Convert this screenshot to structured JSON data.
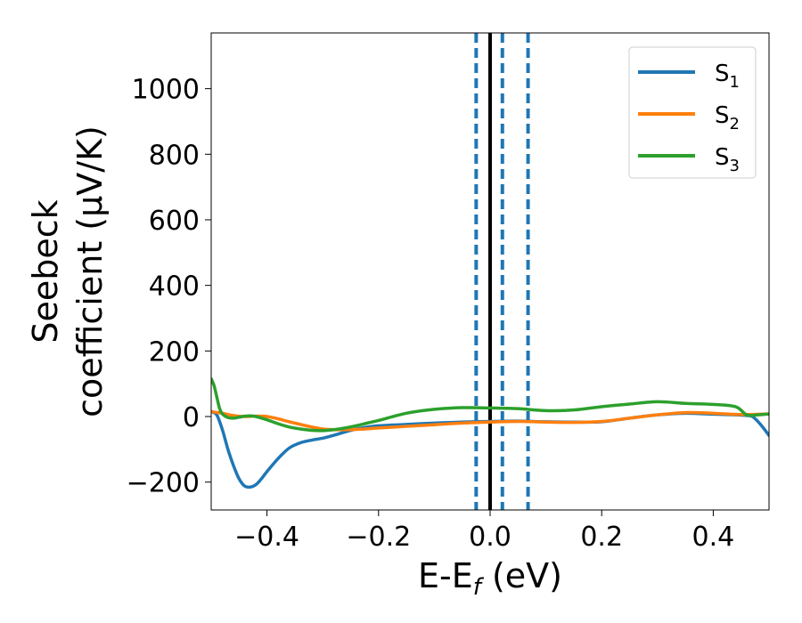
{
  "chart_data": {
    "type": "line",
    "xlabel": "E-E_f (eV)",
    "xlabel_parts": {
      "main": "E-E",
      "sub": "f",
      "tail": " (eV)"
    },
    "ylabel_lines": [
      "Seebeck",
      "coefficient  (μV/K)"
    ],
    "xlim": [
      -0.5,
      0.5
    ],
    "ylim": [
      -285,
      1170
    ],
    "xticks": [
      -0.4,
      -0.2,
      0.0,
      0.2,
      0.4
    ],
    "xtick_labels": [
      "−0.4",
      "−0.2",
      "0.0",
      "0.2",
      "0.4"
    ],
    "yticks": [
      -200,
      0,
      200,
      400,
      600,
      800,
      1000
    ],
    "ytick_labels": [
      "−200",
      "0",
      "200",
      "400",
      "600",
      "800",
      "1000"
    ],
    "legend_position": "top-right",
    "vlines": [
      {
        "x": -0.025,
        "style": "dashed",
        "color": "#1f77b4"
      },
      {
        "x": 0.0,
        "style": "solid",
        "color": "#000000"
      },
      {
        "x": 0.022,
        "style": "dashed",
        "color": "#1f77b4"
      },
      {
        "x": 0.068,
        "style": "dashed",
        "color": "#1f77b4"
      }
    ],
    "series": [
      {
        "name": "S1",
        "label_main": "S",
        "label_sub": "1",
        "color": "#1f77b4",
        "x": [
          -0.5,
          -0.49,
          -0.48,
          -0.47,
          -0.46,
          -0.45,
          -0.44,
          -0.43,
          -0.42,
          -0.41,
          -0.4,
          -0.38,
          -0.36,
          -0.34,
          -0.32,
          -0.3,
          -0.28,
          -0.26,
          -0.24,
          -0.22,
          -0.2,
          -0.15,
          -0.1,
          -0.05,
          0.0,
          0.05,
          0.1,
          0.15,
          0.2,
          0.25,
          0.3,
          0.35,
          0.4,
          0.44,
          0.46,
          0.47,
          0.48,
          0.49,
          0.5
        ],
        "y": [
          15,
          5,
          -40,
          -100,
          -150,
          -190,
          -212,
          -215,
          -208,
          -190,
          -168,
          -128,
          -96,
          -80,
          -72,
          -66,
          -57,
          -47,
          -38,
          -32,
          -28,
          -24,
          -20,
          -17,
          -15,
          -14,
          -16,
          -17,
          -16,
          -5,
          5,
          10,
          7,
          5,
          3,
          0,
          -15,
          -35,
          -58
        ]
      },
      {
        "name": "S2",
        "label_main": "S",
        "label_sub": "2",
        "color": "#ff7f0e",
        "x": [
          -0.5,
          -0.48,
          -0.46,
          -0.44,
          -0.4,
          -0.35,
          -0.3,
          -0.25,
          -0.2,
          -0.15,
          -0.1,
          -0.05,
          0.0,
          0.05,
          0.1,
          0.15,
          0.2,
          0.25,
          0.3,
          0.35,
          0.4,
          0.45,
          0.5
        ],
        "y": [
          15,
          10,
          3,
          0,
          0,
          -20,
          -38,
          -40,
          -35,
          -30,
          -25,
          -20,
          -17,
          -15,
          -17,
          -18,
          -15,
          -5,
          5,
          12,
          10,
          6,
          8
        ]
      },
      {
        "name": "S3",
        "label_main": "S",
        "label_sub": "3",
        "color": "#2ca02c",
        "x": [
          -0.5,
          -0.495,
          -0.49,
          -0.485,
          -0.48,
          -0.47,
          -0.46,
          -0.45,
          -0.44,
          -0.43,
          -0.42,
          -0.4,
          -0.38,
          -0.36,
          -0.34,
          -0.32,
          -0.3,
          -0.28,
          -0.26,
          -0.24,
          -0.22,
          -0.2,
          -0.15,
          -0.1,
          -0.05,
          0.0,
          0.05,
          0.1,
          0.15,
          0.2,
          0.25,
          0.3,
          0.35,
          0.4,
          0.44,
          0.46,
          0.48,
          0.5
        ],
        "y": [
          115,
          95,
          60,
          25,
          8,
          -3,
          -5,
          -2,
          1,
          2,
          0,
          -10,
          -22,
          -32,
          -38,
          -42,
          -43,
          -40,
          -35,
          -28,
          -20,
          -12,
          10,
          22,
          27,
          26,
          24,
          18,
          20,
          30,
          38,
          45,
          40,
          37,
          30,
          5,
          5,
          8
        ]
      }
    ]
  }
}
